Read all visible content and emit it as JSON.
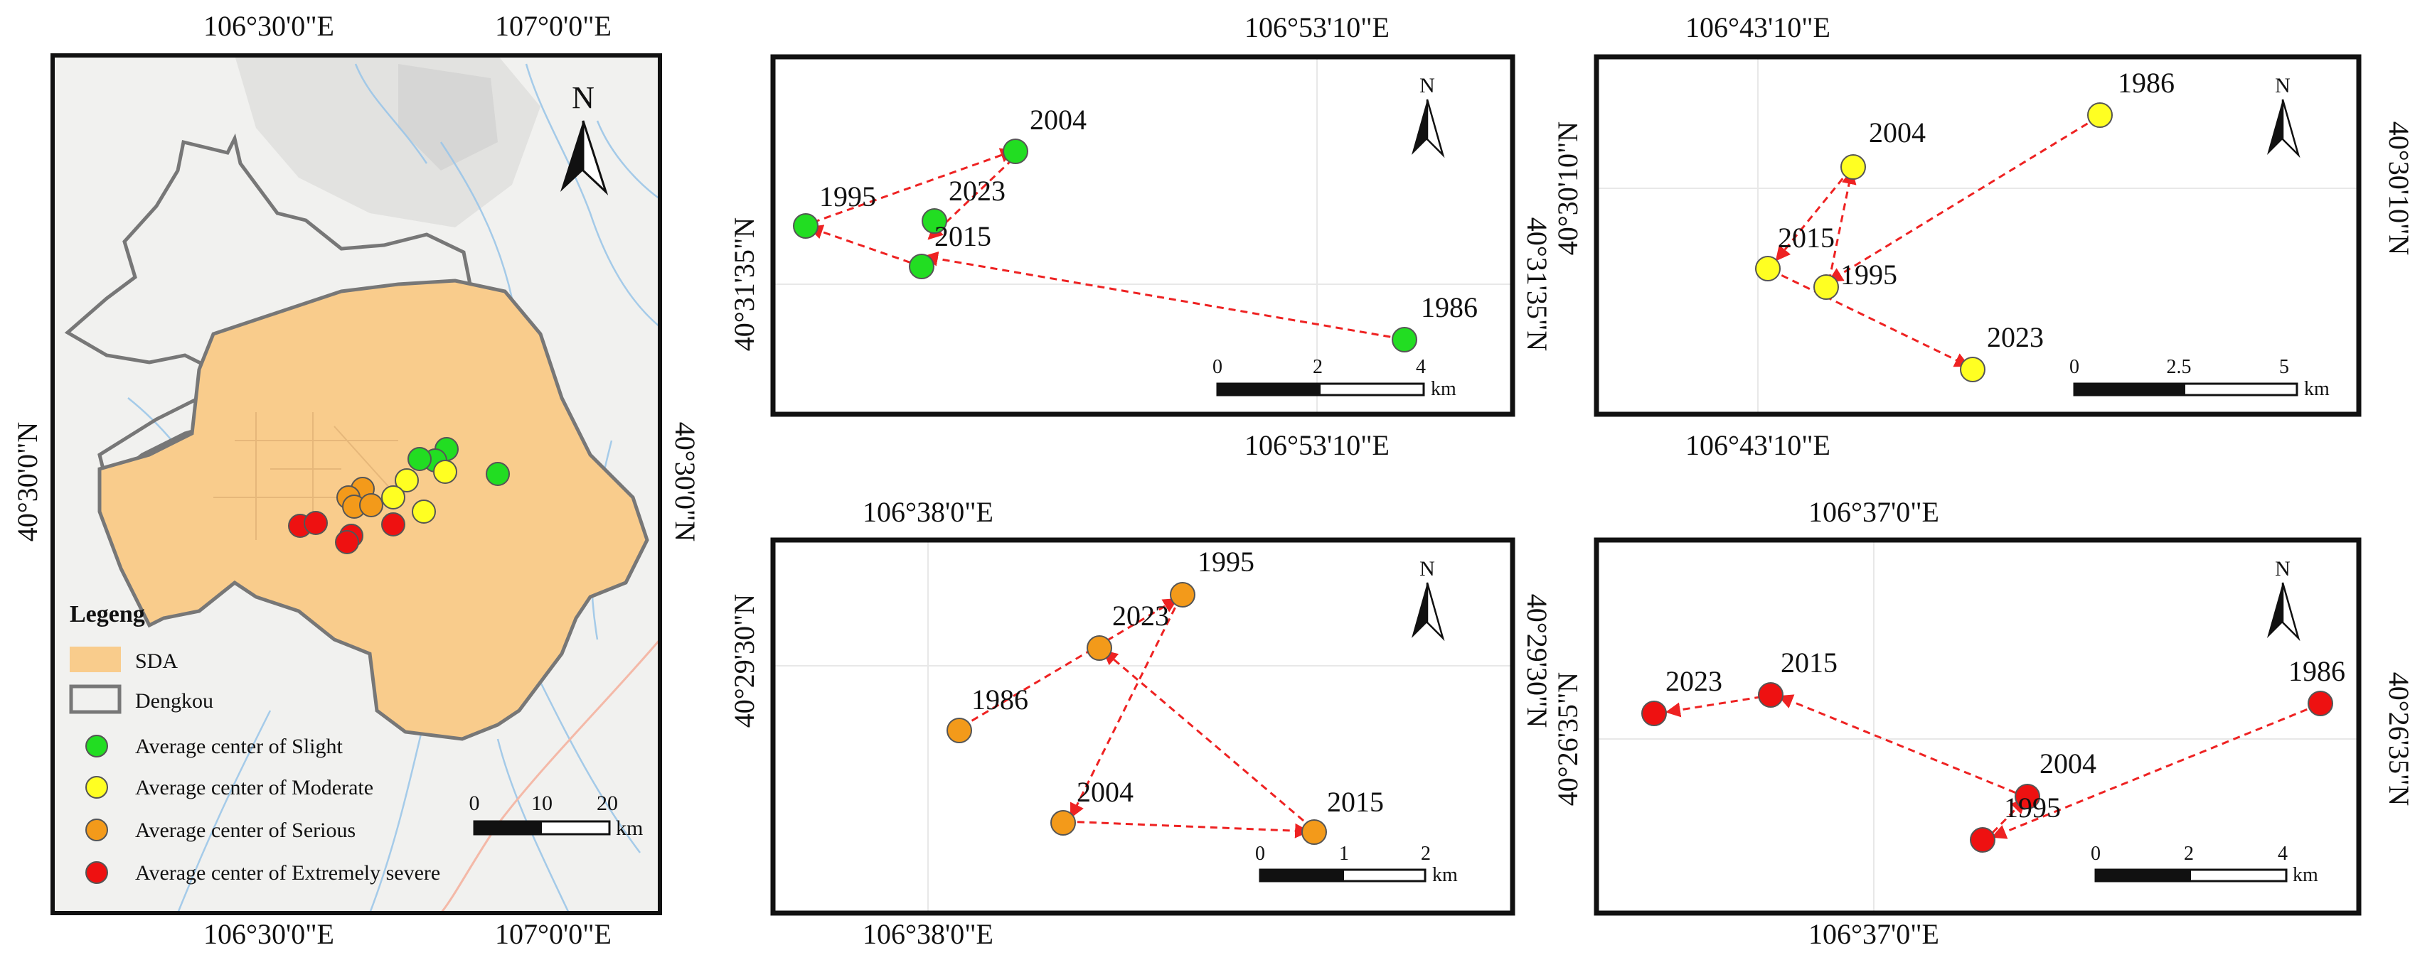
{
  "main_map": {
    "top_lon_labels": [
      "106°30'0\"E",
      "107°0'0\"E"
    ],
    "bottom_lon_labels": [
      "106°30'0\"E",
      "107°0'0\"E"
    ],
    "left_lat_label": "40°30'0\"N",
    "right_lat_label": "40°30'0\"N",
    "north": "N",
    "legend": {
      "title": "Legeng",
      "sda": "SDA",
      "dengkou": "Dengkou",
      "slight": "Average center of Slight",
      "moderate": "Average center of Moderate",
      "serious": "Average center of Serious",
      "extreme": "Average center of Extremely severe"
    },
    "scale": {
      "t0": "0",
      "t1": "10",
      "t2": "20",
      "unit": "km"
    }
  },
  "colors": {
    "slight": "#22dd22",
    "moderate": "#ffff22",
    "serious": "#f39a1a",
    "extreme": "#ee1111",
    "sda": "#f9cc8c",
    "arrow": "#ee2222"
  },
  "panels": [
    {
      "id": "slight",
      "top_lon": "106°53'10\"E",
      "bottom_lon": "106°53'10\"E",
      "left_lat": "40°31'35\"N",
      "right_lat": "40°31'35\"N",
      "north": "N",
      "scale": {
        "t0": "0",
        "t1": "2",
        "t2": "4",
        "unit": "km"
      },
      "years": {
        "y1986": "1986",
        "y1995": "1995",
        "y2004": "2004",
        "y2015": "2015",
        "y2023": "2023"
      }
    },
    {
      "id": "moderate",
      "top_lon": "106°43'10\"E",
      "bottom_lon": "106°43'10\"E",
      "left_lat": "40°30'10\"N",
      "right_lat": "40°30'10\"N",
      "north": "N",
      "scale": {
        "t0": "0",
        "t1": "2.5",
        "t2": "5",
        "unit": "km"
      },
      "years": {
        "y1986": "1986",
        "y1995": "1995",
        "y2004": "2004",
        "y2015": "2015",
        "y2023": "2023"
      }
    },
    {
      "id": "serious",
      "top_lon": "106°38'0\"E",
      "bottom_lon": "106°38'0\"E",
      "left_lat": "40°29'30\"N",
      "right_lat": "40°29'30\"N",
      "north": "N",
      "scale": {
        "t0": "0",
        "t1": "1",
        "t2": "2",
        "unit": "km"
      },
      "years": {
        "y1986": "1986",
        "y1995": "1995",
        "y2004": "2004",
        "y2015": "2015",
        "y2023": "2023"
      }
    },
    {
      "id": "extreme",
      "top_lon": "106°37'0\"E",
      "bottom_lon": "106°37'0\"E",
      "left_lat": "40°26'35\"N",
      "right_lat": "40°26'35\"N",
      "north": "N",
      "scale": {
        "t0": "0",
        "t1": "2",
        "t2": "4",
        "unit": "km"
      },
      "years": {
        "y1986": "1986",
        "y1995": "1995",
        "y2004": "2004",
        "y2015": "2015",
        "y2023": "2023"
      }
    }
  ]
}
